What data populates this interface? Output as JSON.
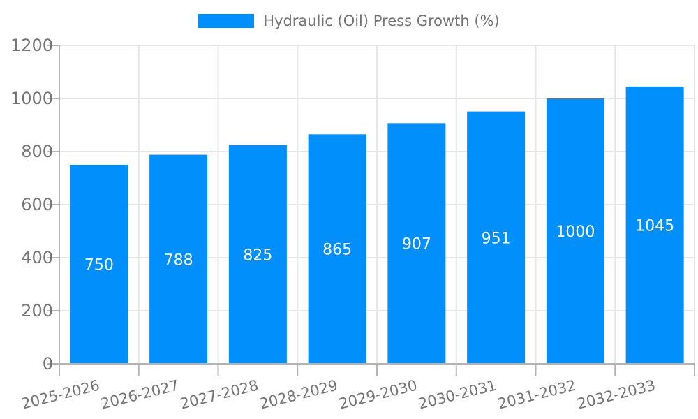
{
  "chart_data": {
    "type": "bar",
    "title": "Hydraulic (Oil) Press Growth (%)",
    "legend": {
      "label": "Hydraulic (Oil) Press Growth (%)",
      "position": "top"
    },
    "categories": [
      "2025-2026",
      "2026-2027",
      "2027-2028",
      "2028-2029",
      "2029-2030",
      "2030-2031",
      "2031-2032",
      "2032-2033"
    ],
    "values": [
      750,
      788,
      825,
      865,
      907,
      951,
      1000,
      1045
    ],
    "xlabel": "",
    "ylabel": "",
    "ylim": [
      0,
      1200
    ],
    "yticks": [
      0,
      200,
      400,
      600,
      800,
      1000,
      1200
    ],
    "grid": true,
    "bar_labels_inside": true,
    "x_label_rotation_deg": -14,
    "colors": {
      "bar": "#008FFB",
      "bar_label": "#FFFFFF",
      "axis_text": "#757575",
      "axis_line": "#B3B3B3",
      "gridline": "#E6E6E6",
      "background": "#FFFFFF"
    }
  }
}
